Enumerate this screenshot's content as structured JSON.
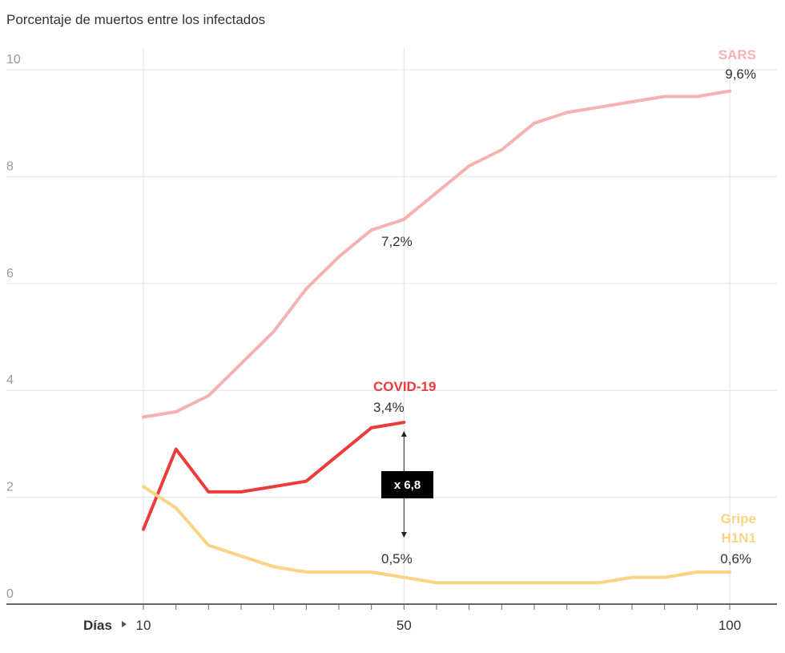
{
  "subtitle": "Porcentaje de muertos entre los infectados",
  "x_axis_label": "Días",
  "ratio_label": "x 6,8",
  "chart_data": {
    "type": "line",
    "subtitle": "Porcentaje de muertos entre los infectados",
    "xlabel": "Días",
    "ylabel": "",
    "xlim": [
      0,
      105
    ],
    "ylim": [
      0,
      10
    ],
    "x_ticks": [
      {
        "value": 10,
        "label": "10"
      },
      {
        "value": 50,
        "label": "50"
      },
      {
        "value": 100,
        "label": "100"
      }
    ],
    "y_ticks": [
      {
        "value": 0,
        "label": "0"
      },
      {
        "value": 2,
        "label": "2"
      },
      {
        "value": 4,
        "label": "4"
      },
      {
        "value": 6,
        "label": "6"
      },
      {
        "value": 8,
        "label": "8"
      },
      {
        "value": 10,
        "label": "10"
      }
    ],
    "series": [
      {
        "name": "SARS",
        "color": "#f5b2b0",
        "x": [
          10,
          15,
          20,
          25,
          30,
          35,
          40,
          45,
          50,
          55,
          60,
          65,
          70,
          75,
          80,
          85,
          90,
          95,
          100
        ],
        "values": [
          3.5,
          3.6,
          3.9,
          4.5,
          5.1,
          5.9,
          6.5,
          7.0,
          7.2,
          7.7,
          8.2,
          8.5,
          9.0,
          9.2,
          9.3,
          9.4,
          9.5,
          9.5,
          9.6
        ]
      },
      {
        "name": "COVID-19",
        "color": "#ec3b3b",
        "x": [
          10,
          15,
          20,
          25,
          30,
          35,
          40,
          45,
          50
        ],
        "values": [
          1.4,
          2.9,
          2.1,
          2.1,
          2.2,
          2.3,
          2.8,
          3.3,
          3.4
        ]
      },
      {
        "name": "Gripe H1N1",
        "name_lines": [
          "Gripe",
          "H1N1"
        ],
        "color": "#fad384",
        "x": [
          10,
          15,
          20,
          25,
          30,
          35,
          40,
          45,
          50,
          55,
          60,
          65,
          70,
          75,
          80,
          85,
          90,
          95,
          100
        ],
        "values": [
          2.2,
          1.8,
          1.1,
          0.9,
          0.7,
          0.6,
          0.6,
          0.6,
          0.5,
          0.4,
          0.4,
          0.4,
          0.4,
          0.4,
          0.4,
          0.5,
          0.5,
          0.6,
          0.6
        ]
      }
    ],
    "annotations": [
      {
        "text": "9,6%",
        "x": 100,
        "y": 9.6
      },
      {
        "text": "7,2%",
        "x": 50,
        "y": 7.2
      },
      {
        "text": "3,4%",
        "x": 50,
        "y": 3.4
      },
      {
        "text": "0,5%",
        "x": 50,
        "y": 0.5
      },
      {
        "text": "0,6%",
        "x": 100,
        "y": 0.6
      },
      {
        "text": "x 6,8",
        "x": 50,
        "y": 2.0
      }
    ],
    "grid": true,
    "legend": "none (series labelled inline at line ends)"
  }
}
